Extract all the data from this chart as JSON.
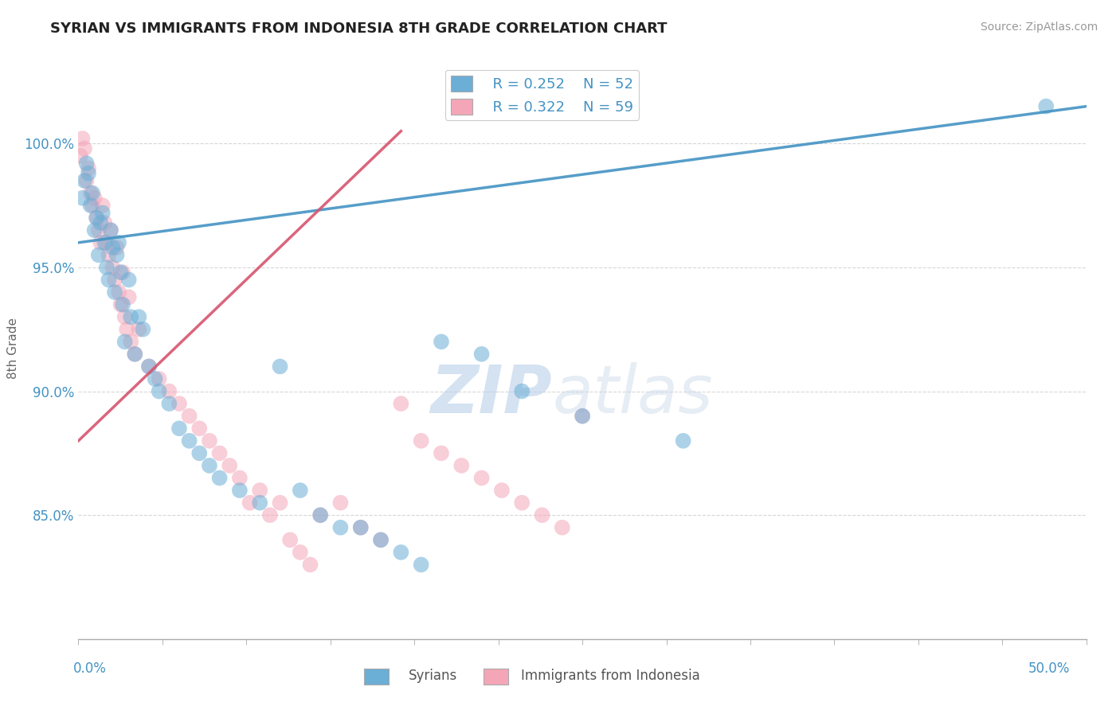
{
  "title": "SYRIAN VS IMMIGRANTS FROM INDONESIA 8TH GRADE CORRELATION CHART",
  "source": "Source: ZipAtlas.com",
  "ylabel": "8th Grade",
  "xlim": [
    0.0,
    50.0
  ],
  "ylim": [
    80.0,
    103.5
  ],
  "ytick_values": [
    85.0,
    90.0,
    95.0,
    100.0
  ],
  "grid_color": "#cccccc",
  "background_color": "#ffffff",
  "blue_color": "#6baed6",
  "pink_color": "#f4a6b8",
  "blue_line_color": "#4393c3",
  "pink_line_color": "#d6546e",
  "legend_R_blue": "R = 0.252",
  "legend_N_blue": "N = 52",
  "legend_R_pink": "R = 0.322",
  "legend_N_pink": "N = 59",
  "watermark_zip": "ZIP",
  "watermark_atlas": "atlas",
  "axis_label_color": "#4393c3",
  "blue_x": [
    0.2,
    0.3,
    0.4,
    0.5,
    0.6,
    0.7,
    0.8,
    0.9,
    1.0,
    1.1,
    1.2,
    1.3,
    1.4,
    1.5,
    1.6,
    1.7,
    1.8,
    1.9,
    2.0,
    2.1,
    2.2,
    2.3,
    2.5,
    2.6,
    2.8,
    3.0,
    3.2,
    3.5,
    3.8,
    4.0,
    4.5,
    5.0,
    5.5,
    6.0,
    6.5,
    7.0,
    8.0,
    9.0,
    10.0,
    11.0,
    12.0,
    13.0,
    14.0,
    15.0,
    16.0,
    17.0,
    18.0,
    20.0,
    22.0,
    25.0,
    30.0,
    48.0
  ],
  "blue_y": [
    97.8,
    98.5,
    99.2,
    98.8,
    97.5,
    98.0,
    96.5,
    97.0,
    95.5,
    96.8,
    97.2,
    96.0,
    95.0,
    94.5,
    96.5,
    95.8,
    94.0,
    95.5,
    96.0,
    94.8,
    93.5,
    92.0,
    94.5,
    93.0,
    91.5,
    93.0,
    92.5,
    91.0,
    90.5,
    90.0,
    89.5,
    88.5,
    88.0,
    87.5,
    87.0,
    86.5,
    86.0,
    85.5,
    91.0,
    86.0,
    85.0,
    84.5,
    84.5,
    84.0,
    83.5,
    83.0,
    92.0,
    91.5,
    90.0,
    89.0,
    88.0,
    101.5
  ],
  "pink_x": [
    0.1,
    0.2,
    0.3,
    0.4,
    0.5,
    0.6,
    0.7,
    0.8,
    0.9,
    1.0,
    1.1,
    1.2,
    1.3,
    1.4,
    1.5,
    1.6,
    1.7,
    1.8,
    1.9,
    2.0,
    2.1,
    2.2,
    2.3,
    2.4,
    2.5,
    2.6,
    2.8,
    3.0,
    3.5,
    4.0,
    4.5,
    5.0,
    5.5,
    6.0,
    6.5,
    7.0,
    7.5,
    8.0,
    8.5,
    9.0,
    9.5,
    10.0,
    10.5,
    11.0,
    11.5,
    12.0,
    13.0,
    14.0,
    15.0,
    16.0,
    17.0,
    18.0,
    19.0,
    20.0,
    21.0,
    22.0,
    23.0,
    24.0,
    25.0
  ],
  "pink_y": [
    99.5,
    100.2,
    99.8,
    98.5,
    99.0,
    98.0,
    97.5,
    97.8,
    97.0,
    96.5,
    96.0,
    97.5,
    96.8,
    96.0,
    95.5,
    96.5,
    95.0,
    94.5,
    95.8,
    94.0,
    93.5,
    94.8,
    93.0,
    92.5,
    93.8,
    92.0,
    91.5,
    92.5,
    91.0,
    90.5,
    90.0,
    89.5,
    89.0,
    88.5,
    88.0,
    87.5,
    87.0,
    86.5,
    85.5,
    86.0,
    85.0,
    85.5,
    84.0,
    83.5,
    83.0,
    85.0,
    85.5,
    84.5,
    84.0,
    89.5,
    88.0,
    87.5,
    87.0,
    86.5,
    86.0,
    85.5,
    85.0,
    84.5,
    89.0
  ],
  "blue_trend_x": [
    0.0,
    50.0
  ],
  "blue_trend_y": [
    96.0,
    101.5
  ],
  "pink_trend_x": [
    0.0,
    16.0
  ],
  "pink_trend_y": [
    88.0,
    100.5
  ]
}
